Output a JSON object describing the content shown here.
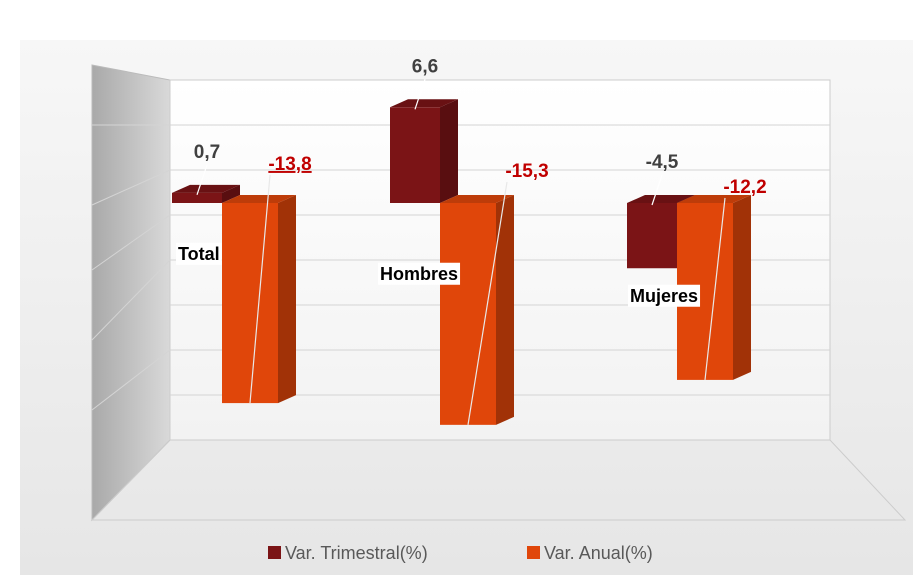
{
  "chart_data": {
    "type": "bar3d",
    "categories": [
      "Total",
      "Hombres",
      "Mujeres"
    ],
    "series": [
      {
        "name": "Var. Trimestral(%)",
        "color": "#7b1416",
        "values": [
          0.7,
          6.6,
          -4.5
        ],
        "value_labels": [
          "0,7",
          "6,6",
          "-4,5"
        ]
      },
      {
        "name": "Var. Anual(%)",
        "color": "#e0460a",
        "values": [
          -13.8,
          -15.3,
          -12.2
        ],
        "value_labels": [
          "-13,8",
          "-15,3",
          "-12,2"
        ]
      }
    ]
  }
}
